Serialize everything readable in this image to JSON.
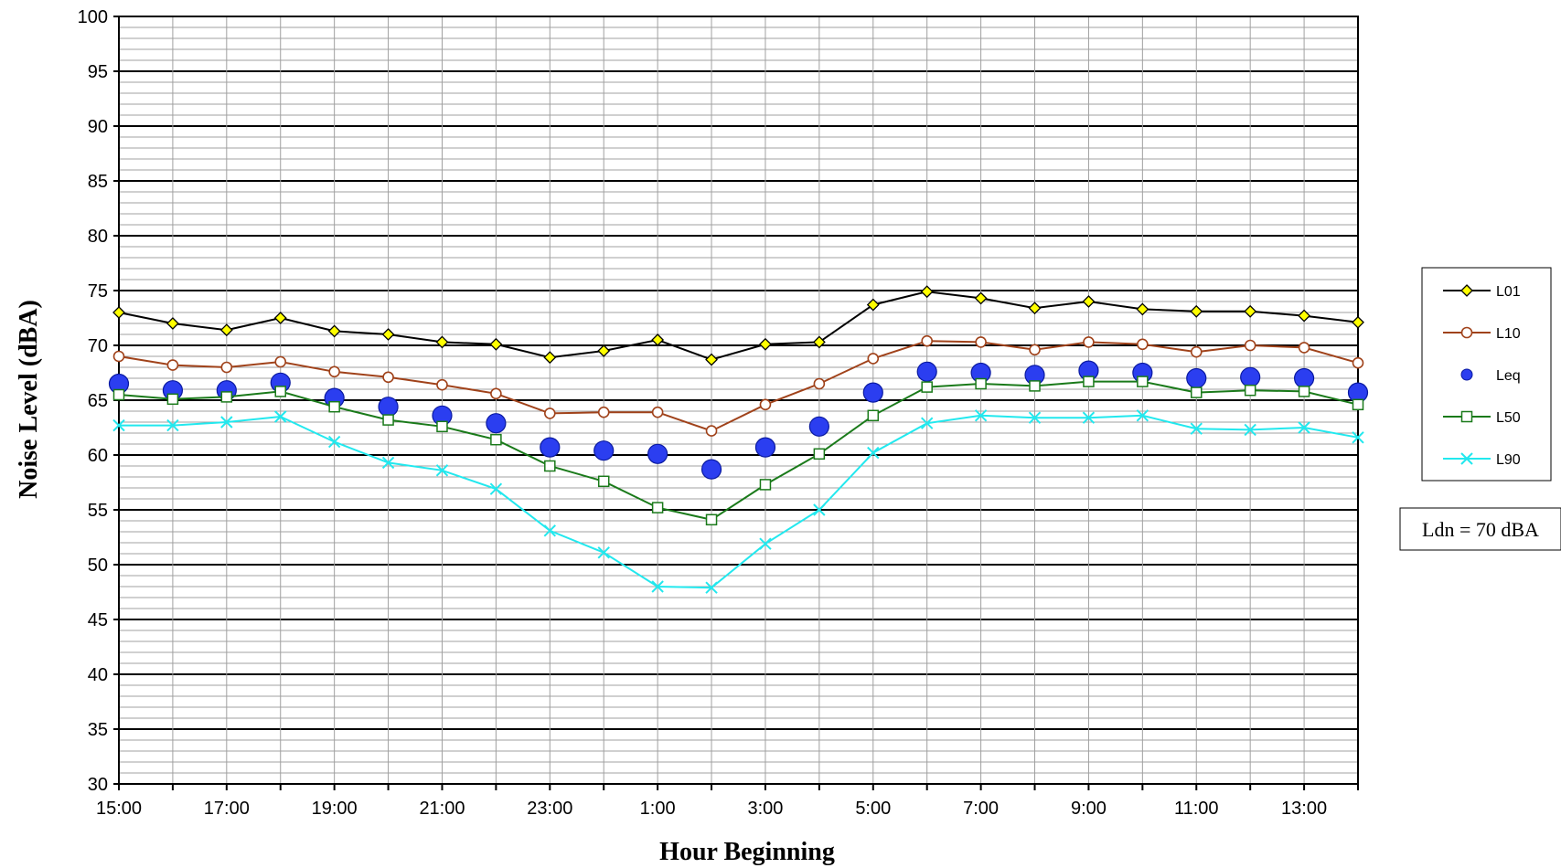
{
  "chart_data": {
    "type": "line",
    "xlabel": "Hour Beginning",
    "ylabel": "Noise Level (dBA)",
    "ylim": [
      30,
      100
    ],
    "y_major_step": 5,
    "y_minor_step": 1,
    "grid": true,
    "legend_placement": "right",
    "categories": [
      "15:00",
      "16:00",
      "17:00",
      "18:00",
      "19:00",
      "20:00",
      "21:00",
      "22:00",
      "23:00",
      "0:00",
      "1:00",
      "2:00",
      "3:00",
      "4:00",
      "5:00",
      "6:00",
      "7:00",
      "8:00",
      "9:00",
      "10:00",
      "11:00",
      "12:00",
      "13:00",
      "14:00"
    ],
    "tick_labels": [
      "15:00",
      "",
      "17:00",
      "",
      "19:00",
      "",
      "21:00",
      "",
      "23:00",
      "",
      "1:00",
      "",
      "3:00",
      "",
      "5:00",
      "",
      "7:00",
      "",
      "9:00",
      "",
      "11:00",
      "",
      "13:00",
      ""
    ],
    "series": [
      {
        "name": "L01",
        "color": "#000000",
        "marker": "diamond",
        "marker_fill": "#ffff00",
        "line": true,
        "values": [
          73.0,
          72.0,
          71.4,
          72.5,
          71.3,
          71.0,
          70.3,
          70.1,
          68.9,
          69.5,
          70.5,
          68.7,
          70.1,
          70.3,
          73.7,
          74.9,
          74.3,
          73.4,
          74.0,
          73.3,
          73.1,
          73.1,
          72.7,
          72.1
        ]
      },
      {
        "name": "L10",
        "color": "#a0421a",
        "marker": "circle",
        "marker_fill": "#ffffff",
        "line": true,
        "values": [
          69.0,
          68.2,
          68.0,
          68.5,
          67.6,
          67.1,
          66.4,
          65.6,
          63.8,
          63.9,
          63.9,
          62.2,
          64.6,
          66.5,
          68.8,
          70.4,
          70.3,
          69.6,
          70.3,
          70.1,
          69.4,
          70.0,
          69.8,
          68.4
        ]
      },
      {
        "name": "Leq",
        "color": "#1a2ee8",
        "marker": "big-circle",
        "marker_fill": "#2b3ef0",
        "line": false,
        "values": [
          66.5,
          65.9,
          65.9,
          66.6,
          65.2,
          64.4,
          63.6,
          62.9,
          60.7,
          60.4,
          60.1,
          58.7,
          60.7,
          62.6,
          65.7,
          67.6,
          67.5,
          67.3,
          67.7,
          67.5,
          67.0,
          67.1,
          67.0,
          65.7
        ]
      },
      {
        "name": "L50",
        "color": "#1a7a1a",
        "marker": "square",
        "marker_fill": "#ffffff",
        "line": true,
        "values": [
          65.5,
          65.1,
          65.3,
          65.8,
          64.4,
          63.2,
          62.6,
          61.4,
          59.0,
          57.6,
          55.2,
          54.1,
          57.3,
          60.1,
          63.6,
          66.2,
          66.5,
          66.3,
          66.7,
          66.7,
          65.7,
          65.9,
          65.8,
          64.6
        ]
      },
      {
        "name": "L90",
        "color": "#22e8ee",
        "marker": "x",
        "marker_fill": "none",
        "line": true,
        "values": [
          62.7,
          62.7,
          63.0,
          63.5,
          61.2,
          59.3,
          58.6,
          56.9,
          53.1,
          51.1,
          48.0,
          47.9,
          51.9,
          55.0,
          60.2,
          62.9,
          63.6,
          63.4,
          63.4,
          63.6,
          62.4,
          62.3,
          62.5,
          61.6
        ]
      }
    ],
    "annotations": [
      {
        "text": "Ldn = 70 dBA"
      }
    ]
  }
}
